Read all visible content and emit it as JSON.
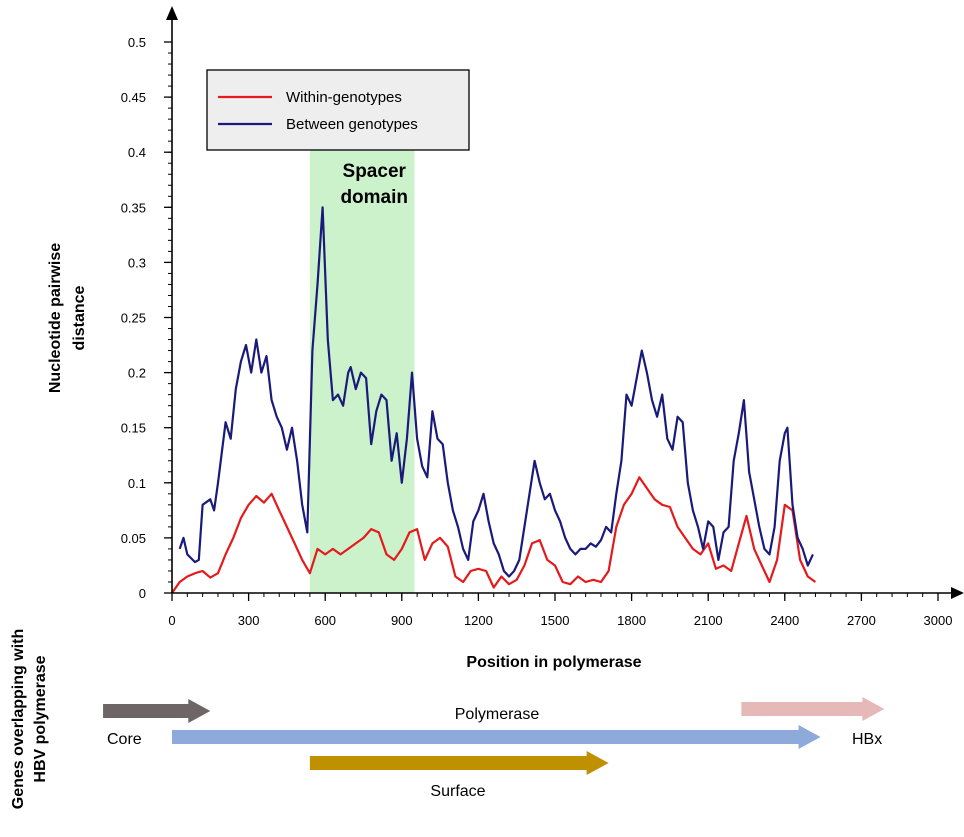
{
  "chart_data": {
    "type": "line",
    "xlabel": "Position in polymerase",
    "ylabel_lines": [
      "Nucleotide pairwise",
      "distance"
    ],
    "xlim": [
      0,
      3000
    ],
    "ylim": [
      0,
      0.5
    ],
    "x_ticks": [
      0,
      300,
      600,
      900,
      1200,
      1500,
      1800,
      2100,
      2400,
      2700,
      3000
    ],
    "y_ticks": [
      0,
      0.05,
      0.1,
      0.15,
      0.2,
      0.25,
      0.3,
      0.35,
      0.4,
      0.45,
      0.5
    ],
    "y_tick_labels": [
      "0",
      "0.05",
      "0.1",
      "0.15",
      "0.2",
      "0.25",
      "0.3",
      "0.35",
      "0.4",
      "0.45",
      "0.5"
    ],
    "grid": false,
    "legend_position": "top-left",
    "highlight_region": {
      "label_lines": [
        "Spacer",
        "domain"
      ],
      "x_range": [
        540,
        950
      ],
      "color": "#ccf2cc"
    },
    "series": [
      {
        "name": "Within-genotypes",
        "color": "#e41a1c",
        "points": [
          [
            0,
            0.0
          ],
          [
            30,
            0.01
          ],
          [
            60,
            0.015
          ],
          [
            90,
            0.018
          ],
          [
            120,
            0.02
          ],
          [
            150,
            0.014
          ],
          [
            180,
            0.018
          ],
          [
            210,
            0.035
          ],
          [
            240,
            0.05
          ],
          [
            270,
            0.068
          ],
          [
            300,
            0.08
          ],
          [
            330,
            0.088
          ],
          [
            360,
            0.082
          ],
          [
            390,
            0.09
          ],
          [
            420,
            0.075
          ],
          [
            450,
            0.06
          ],
          [
            480,
            0.045
          ],
          [
            510,
            0.03
          ],
          [
            540,
            0.018
          ],
          [
            570,
            0.04
          ],
          [
            600,
            0.035
          ],
          [
            630,
            0.04
          ],
          [
            660,
            0.035
          ],
          [
            690,
            0.04
          ],
          [
            720,
            0.045
          ],
          [
            750,
            0.05
          ],
          [
            780,
            0.058
          ],
          [
            810,
            0.055
          ],
          [
            840,
            0.035
          ],
          [
            870,
            0.03
          ],
          [
            900,
            0.04
          ],
          [
            930,
            0.055
          ],
          [
            960,
            0.058
          ],
          [
            990,
            0.03
          ],
          [
            1020,
            0.045
          ],
          [
            1050,
            0.05
          ],
          [
            1080,
            0.042
          ],
          [
            1110,
            0.015
          ],
          [
            1140,
            0.01
          ],
          [
            1170,
            0.02
          ],
          [
            1200,
            0.022
          ],
          [
            1230,
            0.02
          ],
          [
            1260,
            0.005
          ],
          [
            1290,
            0.015
          ],
          [
            1320,
            0.008
          ],
          [
            1350,
            0.012
          ],
          [
            1380,
            0.025
          ],
          [
            1410,
            0.045
          ],
          [
            1440,
            0.048
          ],
          [
            1470,
            0.03
          ],
          [
            1500,
            0.025
          ],
          [
            1530,
            0.01
          ],
          [
            1560,
            0.008
          ],
          [
            1590,
            0.015
          ],
          [
            1620,
            0.01
          ],
          [
            1650,
            0.012
          ],
          [
            1680,
            0.01
          ],
          [
            1710,
            0.02
          ],
          [
            1740,
            0.06
          ],
          [
            1770,
            0.08
          ],
          [
            1800,
            0.09
          ],
          [
            1830,
            0.105
          ],
          [
            1860,
            0.095
          ],
          [
            1890,
            0.085
          ],
          [
            1920,
            0.08
          ],
          [
            1950,
            0.078
          ],
          [
            1980,
            0.06
          ],
          [
            2010,
            0.05
          ],
          [
            2040,
            0.04
          ],
          [
            2070,
            0.035
          ],
          [
            2100,
            0.045
          ],
          [
            2130,
            0.022
          ],
          [
            2160,
            0.025
          ],
          [
            2190,
            0.02
          ],
          [
            2220,
            0.045
          ],
          [
            2250,
            0.07
          ],
          [
            2280,
            0.04
          ],
          [
            2310,
            0.025
          ],
          [
            2340,
            0.01
          ],
          [
            2370,
            0.03
          ],
          [
            2400,
            0.08
          ],
          [
            2430,
            0.075
          ],
          [
            2460,
            0.03
          ],
          [
            2490,
            0.015
          ],
          [
            2520,
            0.01
          ]
        ]
      },
      {
        "name": "Between genotypes",
        "color": "#1a1a7a",
        "points": [
          [
            30,
            0.04
          ],
          [
            45,
            0.05
          ],
          [
            60,
            0.035
          ],
          [
            90,
            0.028
          ],
          [
            105,
            0.03
          ],
          [
            120,
            0.08
          ],
          [
            150,
            0.085
          ],
          [
            165,
            0.075
          ],
          [
            180,
            0.1
          ],
          [
            210,
            0.155
          ],
          [
            230,
            0.14
          ],
          [
            250,
            0.185
          ],
          [
            270,
            0.21
          ],
          [
            290,
            0.225
          ],
          [
            310,
            0.2
          ],
          [
            330,
            0.23
          ],
          [
            350,
            0.2
          ],
          [
            370,
            0.215
          ],
          [
            390,
            0.175
          ],
          [
            410,
            0.16
          ],
          [
            430,
            0.15
          ],
          [
            450,
            0.13
          ],
          [
            470,
            0.15
          ],
          [
            490,
            0.12
          ],
          [
            510,
            0.08
          ],
          [
            530,
            0.055
          ],
          [
            550,
            0.22
          ],
          [
            570,
            0.28
          ],
          [
            590,
            0.35
          ],
          [
            610,
            0.23
          ],
          [
            630,
            0.175
          ],
          [
            650,
            0.18
          ],
          [
            670,
            0.17
          ],
          [
            690,
            0.2
          ],
          [
            700,
            0.205
          ],
          [
            720,
            0.185
          ],
          [
            740,
            0.2
          ],
          [
            760,
            0.195
          ],
          [
            780,
            0.135
          ],
          [
            800,
            0.165
          ],
          [
            820,
            0.18
          ],
          [
            840,
            0.175
          ],
          [
            860,
            0.12
          ],
          [
            880,
            0.145
          ],
          [
            900,
            0.1
          ],
          [
            920,
            0.14
          ],
          [
            940,
            0.2
          ],
          [
            960,
            0.14
          ],
          [
            980,
            0.115
          ],
          [
            1000,
            0.105
          ],
          [
            1020,
            0.165
          ],
          [
            1040,
            0.14
          ],
          [
            1060,
            0.135
          ],
          [
            1080,
            0.1
          ],
          [
            1100,
            0.075
          ],
          [
            1120,
            0.06
          ],
          [
            1140,
            0.04
          ],
          [
            1160,
            0.03
          ],
          [
            1180,
            0.065
          ],
          [
            1200,
            0.075
          ],
          [
            1220,
            0.09
          ],
          [
            1240,
            0.065
          ],
          [
            1260,
            0.045
          ],
          [
            1280,
            0.035
          ],
          [
            1300,
            0.02
          ],
          [
            1320,
            0.015
          ],
          [
            1340,
            0.02
          ],
          [
            1360,
            0.03
          ],
          [
            1380,
            0.06
          ],
          [
            1400,
            0.09
          ],
          [
            1420,
            0.12
          ],
          [
            1440,
            0.1
          ],
          [
            1460,
            0.085
          ],
          [
            1480,
            0.09
          ],
          [
            1500,
            0.075
          ],
          [
            1520,
            0.065
          ],
          [
            1540,
            0.05
          ],
          [
            1560,
            0.04
          ],
          [
            1580,
            0.035
          ],
          [
            1600,
            0.04
          ],
          [
            1620,
            0.04
          ],
          [
            1640,
            0.045
          ],
          [
            1660,
            0.042
          ],
          [
            1680,
            0.048
          ],
          [
            1700,
            0.06
          ],
          [
            1720,
            0.055
          ],
          [
            1740,
            0.09
          ],
          [
            1760,
            0.12
          ],
          [
            1780,
            0.18
          ],
          [
            1800,
            0.17
          ],
          [
            1820,
            0.195
          ],
          [
            1840,
            0.22
          ],
          [
            1860,
            0.2
          ],
          [
            1880,
            0.175
          ],
          [
            1900,
            0.16
          ],
          [
            1920,
            0.18
          ],
          [
            1940,
            0.14
          ],
          [
            1960,
            0.13
          ],
          [
            1980,
            0.16
          ],
          [
            2000,
            0.155
          ],
          [
            2020,
            0.1
          ],
          [
            2040,
            0.075
          ],
          [
            2060,
            0.06
          ],
          [
            2080,
            0.04
          ],
          [
            2100,
            0.065
          ],
          [
            2120,
            0.06
          ],
          [
            2140,
            0.03
          ],
          [
            2160,
            0.055
          ],
          [
            2180,
            0.06
          ],
          [
            2200,
            0.12
          ],
          [
            2220,
            0.145
          ],
          [
            2240,
            0.175
          ],
          [
            2260,
            0.11
          ],
          [
            2280,
            0.085
          ],
          [
            2300,
            0.06
          ],
          [
            2320,
            0.04
          ],
          [
            2340,
            0.035
          ],
          [
            2360,
            0.06
          ],
          [
            2380,
            0.12
          ],
          [
            2400,
            0.145
          ],
          [
            2410,
            0.15
          ],
          [
            2430,
            0.08
          ],
          [
            2450,
            0.05
          ],
          [
            2470,
            0.04
          ],
          [
            2490,
            0.025
          ],
          [
            2510,
            0.035
          ]
        ]
      }
    ]
  },
  "genes_panel": {
    "title_lines": [
      "Genes overlapping with",
      "HBV polymerase"
    ],
    "genes": [
      {
        "name": "Core",
        "color": "#6d6566",
        "start": -270,
        "end": 150
      },
      {
        "name": "Polymerase",
        "color": "#8eaadb",
        "start": 0,
        "end": 2540
      },
      {
        "name": "Surface",
        "color": "#bf9000",
        "start": 540,
        "end": 1710
      },
      {
        "name": "HBx",
        "color": "#e6b8b7",
        "start": 2230,
        "end": 2790
      }
    ]
  }
}
